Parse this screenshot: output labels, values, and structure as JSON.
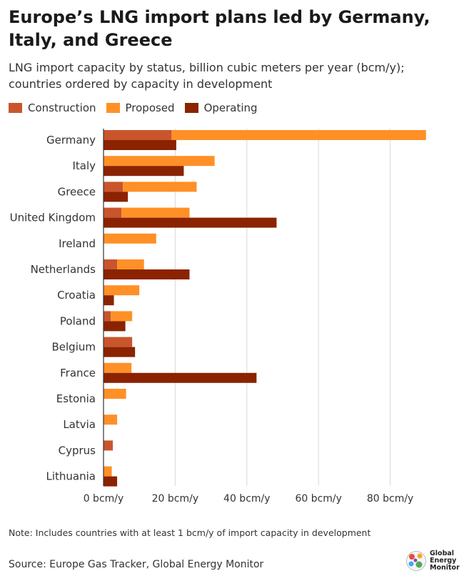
{
  "title": "Europe’s LNG import plans led by Germany, Italy, and Greece",
  "subtitle": "LNG import capacity by status, billion cubic meters per year (bcm/y); countries ordered by capacity in development",
  "note": "Note: Includes countries with at least 1 bcm/y of import capacity in development",
  "source": "Source: Europe Gas Tracker, Global Energy Monitor",
  "logo": {
    "line1": "Global",
    "line2": "Energy",
    "line3": "Monitor"
  },
  "colors": {
    "construction": "#c9552d",
    "proposed": "#ff9027",
    "operating": "#8b2300",
    "grid": "#d9d9d9",
    "axis": "#333333"
  },
  "chart_data": {
    "type": "bar",
    "orientation": "horizontal",
    "categories": [
      "Germany",
      "Italy",
      "Greece",
      "United Kingdom",
      "Ireland",
      "Netherlands",
      "Croatia",
      "Poland",
      "Belgium",
      "France",
      "Estonia",
      "Latvia",
      "Cyprus",
      "Lithuania"
    ],
    "series": [
      {
        "name": "Construction",
        "stack": "development",
        "color": "#c9552d",
        "values": [
          19,
          0,
          5.4,
          5,
          0,
          3.8,
          0,
          2,
          8,
          0,
          0,
          0,
          2.6,
          0
        ]
      },
      {
        "name": "Proposed",
        "stack": "development",
        "color": "#ff9027",
        "values": [
          71,
          31,
          20.6,
          19,
          14.7,
          7.5,
          10,
          6,
          0,
          7.8,
          6.3,
          3.8,
          0,
          2.3
        ]
      },
      {
        "name": "Operating",
        "stack": "operating",
        "color": "#8b2300",
        "values": [
          20.3,
          22.4,
          6.8,
          48.3,
          0,
          24,
          2.9,
          6.1,
          8.8,
          42.7,
          0,
          0,
          0,
          3.8
        ]
      }
    ],
    "x_ticks": [
      "0 bcm/y",
      "20 bcm/y",
      "40 bcm/y",
      "60 bcm/y",
      "80 bcm/y"
    ],
    "x_tick_values": [
      0,
      20,
      40,
      60,
      80
    ],
    "xlim": [
      0,
      90
    ],
    "legend": [
      "Construction",
      "Proposed",
      "Operating"
    ],
    "grid": true,
    "legend_position": "top-left"
  }
}
